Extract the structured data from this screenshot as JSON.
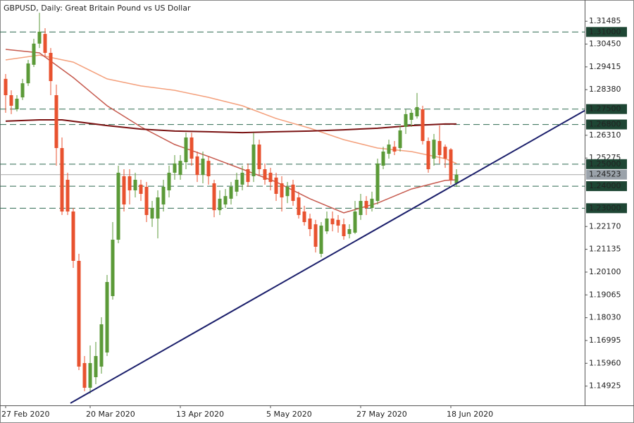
{
  "chart_data": {
    "type": "candlestick",
    "title": "GBPUSD, Daily:  Great Britain Pound vs US Dollar",
    "categories": [
      "27 Feb 2020",
      null,
      null,
      null,
      null,
      null,
      null,
      null,
      null,
      null,
      null,
      null,
      null,
      null,
      null,
      "20 Mar 2020",
      null,
      null,
      null,
      null,
      null,
      null,
      null,
      null,
      null,
      null,
      null,
      null,
      null,
      null,
      null,
      "13 Apr 2020",
      null,
      null,
      null,
      null,
      null,
      null,
      null,
      null,
      null,
      null,
      null,
      null,
      null,
      null,
      null,
      "5 May 2020",
      null,
      null,
      null,
      null,
      null,
      null,
      null,
      null,
      null,
      null,
      null,
      null,
      null,
      null,
      null,
      "27 May 2020",
      null,
      null,
      null,
      null,
      null,
      null,
      null,
      null,
      null,
      null,
      null,
      null,
      null,
      null,
      null,
      "18 Jun 2020",
      null
    ],
    "open": [
      1.2887,
      1.2813,
      1.2749,
      1.2803,
      1.2867,
      1.2951,
      1.3047,
      1.3091,
      1.3005,
      1.2813,
      1.2573,
      1.2429,
      1.2285,
      1.2061,
      1.1597,
      1.1485,
      1.1533,
      1.1581,
      1.1645,
      1.1901,
      1.2157,
      1.2445,
      1.2445,
      1.2381,
      1.2407,
      1.2397,
      1.2253,
      1.2253,
      1.2317,
      1.2381,
      1.2461,
      1.2451,
      1.2509,
      1.2621,
      1.2535,
      1.2451,
      1.2515,
      1.2413,
      1.2291,
      1.2317,
      1.2343,
      1.2375,
      1.2407,
      1.2477,
      1.2445,
      1.2589,
      1.2477,
      1.2461,
      1.2439,
      1.2413,
      1.2355,
      1.2407,
      1.2349,
      1.2285,
      1.2253,
      1.2227,
      1.2093,
      1.2195,
      1.2253,
      1.2247,
      1.2227,
      1.2183,
      1.2189,
      1.2269,
      1.2333,
      1.2301,
      1.2333,
      1.2493,
      1.2547,
      1.2579,
      1.2573,
      1.2669,
      1.2701,
      1.2717,
      1.2749,
      1.2605,
      1.2525,
      1.2605,
      1.2579,
      1.2567,
      1.2413
    ],
    "high": [
      1.2909,
      1.2835,
      1.2813,
      1.2887,
      1.2973,
      1.3069,
      1.3187,
      1.3117,
      1.3027,
      1.2861,
      1.2621,
      1.2461,
      1.2301,
      1.2093,
      1.1629,
      1.1677,
      1.1693,
      1.1805,
      1.1997,
      1.2237,
      1.2493,
      1.2477,
      1.2477,
      1.2461,
      1.2429,
      1.2419,
      1.2333,
      1.2381,
      1.2429,
      1.2493,
      1.2541,
      1.2541,
      1.2643,
      1.2643,
      1.2557,
      1.2557,
      1.2535,
      1.2429,
      1.2381,
      1.2387,
      1.2419,
      1.2461,
      1.2493,
      1.2503,
      1.2643,
      1.2611,
      1.2503,
      1.2483,
      1.2461,
      1.2445,
      1.2419,
      1.2429,
      1.2375,
      1.2311,
      1.2275,
      1.2247,
      1.2237,
      1.2285,
      1.2285,
      1.2269,
      1.2253,
      1.2227,
      1.2333,
      1.2365,
      1.2355,
      1.2375,
      1.2525,
      1.2579,
      1.2611,
      1.2605,
      1.2675,
      1.2749,
      1.2749,
      1.2823,
      1.2765,
      1.2621,
      1.2637,
      1.2675,
      1.2589,
      1.2573,
      1.2477
    ],
    "low": [
      1.2733,
      1.2727,
      1.2739,
      1.2791,
      1.2855,
      1.2941,
      1.3027,
      1.2989,
      1.2813,
      1.2493,
      1.2269,
      1.2269,
      1.2029,
      1.1565,
      1.1469,
      1.1459,
      1.1501,
      1.1549,
      1.1629,
      1.1885,
      1.2141,
      1.2285,
      1.2317,
      1.2349,
      1.2333,
      1.2237,
      1.2215,
      1.2163,
      1.2285,
      1.2349,
      1.2429,
      1.2429,
      1.2477,
      1.2493,
      1.2419,
      1.2413,
      1.2407,
      1.2259,
      1.2269,
      1.2301,
      1.2317,
      1.2355,
      1.2381,
      1.2397,
      1.2419,
      1.2451,
      1.2407,
      1.2381,
      1.2333,
      1.2285,
      1.2323,
      1.2311,
      1.2253,
      1.2221,
      1.2173,
      1.2099,
      1.2077,
      1.2183,
      1.2195,
      1.2189,
      1.2157,
      1.2163,
      1.2183,
      1.2247,
      1.2269,
      1.2285,
      1.2317,
      1.2477,
      1.2525,
      1.2541,
      1.2557,
      1.2637,
      1.2669,
      1.2707,
      1.2589,
      1.2461,
      1.2493,
      1.2503,
      1.2483,
      1.2407,
      1.2397
    ],
    "close": [
      1.2813,
      1.2765,
      1.2797,
      1.2867,
      1.2957,
      1.3047,
      1.3101,
      1.3005,
      1.2877,
      1.2573,
      1.2285,
      1.2285,
      1.2061,
      1.1581,
      1.1485,
      1.1597,
      1.1629,
      1.1773,
      1.1965,
      1.2157,
      1.2461,
      1.2317,
      1.2381,
      1.2429,
      1.2365,
      1.2269,
      1.2301,
      1.2349,
      1.2397,
      1.2461,
      1.2503,
      1.2515,
      1.2621,
      1.2525,
      1.2451,
      1.2525,
      1.2445,
      1.2291,
      1.2343,
      1.2355,
      1.2397,
      1.2429,
      1.2461,
      1.2419,
      1.2589,
      1.2477,
      1.2429,
      1.2419,
      1.2365,
      1.2349,
      1.2397,
      1.2333,
      1.2269,
      1.2237,
      1.2205,
      1.2125,
      1.2221,
      1.2253,
      1.2227,
      1.2221,
      1.2173,
      1.2205,
      1.2285,
      1.2333,
      1.2301,
      1.2343,
      1.2503,
      1.2557,
      1.2589,
      1.2557,
      1.2653,
      1.2727,
      1.2733,
      1.2759,
      1.2605,
      1.2477,
      1.2611,
      1.2541,
      1.2525,
      1.2429,
      1.24523
    ],
    "up_color": "#5b9a38",
    "down_color": "#e8522f",
    "xlim": [
      -1,
      102.75
    ],
    "ylim": [
      1.1405,
      1.3245
    ],
    "yticks": [
      1.31485,
      {
        "value": 1.3045,
        "label": "1.30450"
      },
      1.29415,
      {
        "value": 1.2838,
        "label": "1.28380"
      },
      {
        "value": 1.2631,
        "label": "1.26310"
      },
      1.25275,
      {
        "value": 1.2217,
        "label": "1.22170"
      },
      1.21135,
      {
        "value": 1.201,
        "label": "1.20100"
      },
      1.19065,
      {
        "value": 1.1803,
        "label": "1.18030"
      },
      1.16995,
      {
        "value": 1.1596,
        "label": "1.15960"
      },
      1.14925
    ],
    "overlays": [
      {
        "type": "line",
        "color": "#f4a07c",
        "x": [
          0,
          6,
          12,
          18,
          24,
          30,
          36,
          42,
          48,
          54,
          60,
          66,
          72,
          78,
          80
        ],
        "values": [
          1.2973,
          1.2995,
          1.2963,
          1.2887,
          1.2855,
          1.2835,
          1.2803,
          1.2765,
          1.2707,
          1.2663,
          1.2611,
          1.2573,
          1.2557,
          1.2525,
          1.2503
        ]
      },
      {
        "type": "line",
        "color": "#c65a4e",
        "x": [
          0,
          6,
          12,
          18,
          24,
          30,
          36,
          42,
          48,
          54,
          60,
          66,
          72,
          78,
          80
        ],
        "values": [
          1.3021,
          1.3005,
          1.2893,
          1.2765,
          1.2669,
          1.2589,
          1.2535,
          1.2477,
          1.2419,
          1.2343,
          1.2279,
          1.2323,
          1.2387,
          1.2426,
          1.2429
        ]
      },
      {
        "type": "line",
        "color": "#7a1212",
        "x": [
          0,
          6,
          10,
          18,
          24,
          30,
          36,
          42,
          48,
          54,
          60,
          66,
          72,
          78,
          80
        ],
        "values": [
          1.2695,
          1.2701,
          1.2701,
          1.2675,
          1.2659,
          1.265,
          1.2647,
          1.2643,
          1.2647,
          1.265,
          1.2656,
          1.2663,
          1.2675,
          1.2682,
          1.2682
        ]
      }
    ],
    "trendline": {
      "color": "#1b1f6b",
      "x": [
        11.5,
        102.75
      ],
      "values": [
        1.1415,
        1.2743
      ]
    },
    "levels": [
      {
        "value": 1.31,
        "label": "1.31000"
      },
      {
        "value": 1.275,
        "label": "1.27500"
      },
      {
        "value": 1.268,
        "label": "1.26800"
      },
      {
        "value": 1.25,
        "label": "1.25000"
      },
      {
        "value": 1.24,
        "label": "1.24000"
      },
      {
        "value": 1.23,
        "label": "1.23000"
      }
    ],
    "level_color": "#2f6a50",
    "last_price": {
      "value": 1.24523,
      "label": "1.24523"
    }
  }
}
